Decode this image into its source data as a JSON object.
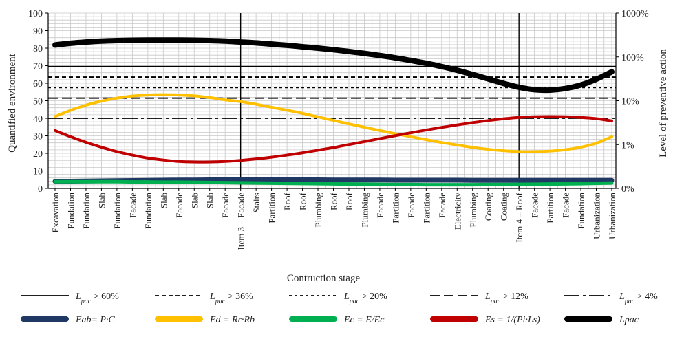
{
  "chart_data": {
    "type": "line",
    "xlabel": "Contruction stage",
    "ylabel": "Quantified environment",
    "ylabel_right": "Level of preventive action",
    "ylim": [
      0,
      100
    ],
    "y_ticks": [
      0,
      10,
      20,
      30,
      40,
      50,
      60,
      70,
      80,
      90,
      100
    ],
    "y_right_ticks": [
      "0%",
      "1%",
      "10%",
      "100%",
      "1000%"
    ],
    "y_right_scale": "log",
    "grid": true,
    "legend_position": "bottom",
    "categories": [
      "Excavation",
      "Fundation",
      "Fundation",
      "Slab",
      "Fundation",
      "Facade",
      "Fundation",
      "Slab",
      "Facade",
      "Slab",
      "Slab",
      "Facade",
      "Item 3 – Facade",
      "Stairs",
      "Partition",
      "Roof",
      "Roof",
      "Plumbing",
      "Roof",
      "Roof",
      "Plumbing",
      "Facade",
      "Partition",
      "Facade",
      "Partition",
      "Facade",
      "Electricity",
      "Plumbing",
      "Coating",
      "Coating",
      "Item 4 – Roof",
      "Facade",
      "Partition",
      "Facade",
      "Fundation",
      "Urbanization",
      "Urbanization"
    ],
    "milestones": [
      "Item 3 – Facade",
      "Item 4 – Roof"
    ],
    "thresholds": [
      {
        "name": "Lpac > 60%",
        "value": 69.5,
        "color": "#000000"
      },
      {
        "name": "Lpac > 36%",
        "value": 63.5,
        "color": "#000000"
      },
      {
        "name": "Lpac > 20%",
        "value": 57.5,
        "color": "#000000"
      },
      {
        "name": "Lpac > 12%",
        "value": 51.5,
        "color": "#000000"
      },
      {
        "name": "Lpac > 4%",
        "value": 40,
        "color": "#000000"
      }
    ],
    "series": [
      {
        "name": "Eab= P·C",
        "color": "#1f3864",
        "width": 7,
        "values": [
          4,
          4.1,
          4.2,
          4.3,
          4.4,
          4.5,
          4.6,
          4.7,
          4.8,
          4.8,
          4.9,
          4.9,
          4.9,
          4.9,
          4.9,
          4.9,
          4.9,
          4.9,
          4.8,
          4.8,
          4.8,
          4.8,
          4.7,
          4.7,
          4.7,
          4.7,
          4.7,
          4.6,
          4.6,
          4.6,
          4.6,
          4.6,
          4.6,
          4.6,
          4.6,
          4.6,
          4.6
        ]
      },
      {
        "name": "Ed = Rr·Rb",
        "color": "#ffc000",
        "width": 4,
        "values": [
          41,
          44.5,
          47.5,
          49.8,
          51.5,
          52.7,
          53.3,
          53.5,
          53.3,
          52.8,
          51.8,
          50.5,
          49.5,
          48,
          46.3,
          44.6,
          42.8,
          40.8,
          38.8,
          36.8,
          34.9,
          33,
          31.2,
          29.5,
          27.8,
          26.2,
          24.8,
          23.4,
          22.3,
          21.5,
          21,
          21,
          21.3,
          22.1,
          23.5,
          25.8,
          29.5
        ]
      },
      {
        "name": "Ec = E/Ec",
        "color": "#00b050",
        "width": 5,
        "values": [
          3.8,
          3.8,
          3.8,
          3.8,
          3.8,
          3.7,
          3.7,
          3.6,
          3.6,
          3.5,
          3.4,
          3.3,
          3.2,
          3.1,
          3,
          2.9,
          2.8,
          2.7,
          2.6,
          2.5,
          2.4,
          2.3,
          2.2,
          2.2,
          2.1,
          2.1,
          2.1,
          2.1,
          2.2,
          2.2,
          2.3,
          2.4,
          2.5,
          2.6,
          2.7,
          2.9,
          3.1
        ]
      },
      {
        "name": "Es = 1/(Pi·Ls)",
        "color": "#c00000",
        "width": 4,
        "values": [
          33,
          29.5,
          26.3,
          23.5,
          21,
          19,
          17.3,
          16.2,
          15.4,
          15.1,
          15.1,
          15.4,
          16,
          16.8,
          17.8,
          19,
          20.3,
          21.8,
          23.3,
          25,
          26.7,
          28.4,
          30.1,
          31.7,
          33.3,
          34.8,
          36.2,
          37.5,
          38.7,
          39.7,
          40.5,
          40.9,
          41,
          40.9,
          40.5,
          39.8,
          38.5
        ]
      },
      {
        "name": "Lpac",
        "color": "#000000",
        "width": 8,
        "values": [
          81.8,
          82.8,
          83.5,
          84,
          84.3,
          84.5,
          84.6,
          84.6,
          84.6,
          84.5,
          84.3,
          84,
          83.5,
          83,
          82.3,
          81.6,
          80.8,
          80,
          79.1,
          78.1,
          77,
          75.8,
          74.5,
          73,
          71.4,
          69.5,
          67.4,
          65,
          62.5,
          59.9,
          57.7,
          56.3,
          56.1,
          57,
          59,
          62.3,
          66.5
        ]
      }
    ]
  },
  "legend": [
    {
      "key": "Lpac > 60%",
      "main": "L",
      "sub": "pac",
      "rest": " > 60%",
      "style": "solid-thin"
    },
    {
      "key": "Lpac > 36%",
      "main": "L",
      "sub": "pac",
      "rest": " > 36%",
      "style": "dash-short"
    },
    {
      "key": "Lpac > 20%",
      "main": "L",
      "sub": "pac",
      "rest": " > 20%",
      "style": "dash-dot-small"
    },
    {
      "key": "Lpac > 12%",
      "main": "L",
      "sub": "pac",
      "rest": " > 12%",
      "style": "dash-long"
    },
    {
      "key": "Lpac > 4%",
      "main": "L",
      "sub": "pac",
      "rest": " > 4%",
      "style": "dash-dot-long"
    },
    {
      "key": "Eab",
      "text": "Eab= P·C",
      "color": "#1f3864"
    },
    {
      "key": "Ed",
      "text": "Ed = Rr·Rb",
      "color": "#ffc000"
    },
    {
      "key": "Ec",
      "text": "Ec = E/Ec",
      "color": "#00b050"
    },
    {
      "key": "Es",
      "text": "Es = 1/(Pi·Ls)",
      "color": "#c00000"
    },
    {
      "key": "Lpac",
      "text": "Lpac",
      "color": "#000000"
    }
  ]
}
